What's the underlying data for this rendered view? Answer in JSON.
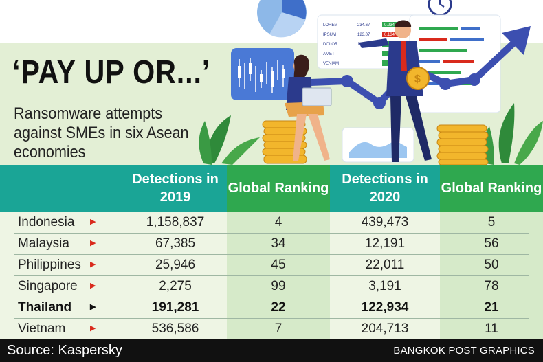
{
  "header": {
    "title": "‘PAY UP OR...’",
    "subtitle": "Ransomware attempts against SMEs in six Asean economies"
  },
  "illustration": {
    "ticker": [
      {
        "name": "LOREM",
        "value": "234.67",
        "change": "0.234",
        "color": "#2fa84f"
      },
      {
        "name": "IPSUM",
        "value": "123.07",
        "change": "0.134",
        "color": "#d92a1c"
      },
      {
        "name": "DOLOR",
        "value": "145.0",
        "change": "",
        "color": "#2fa84f"
      },
      {
        "name": "AMET",
        "value": "",
        "change": "",
        "color": "#2fa84f"
      },
      {
        "name": "VENIAM",
        "value": "",
        "change": "",
        "color": "#2fa84f"
      }
    ]
  },
  "table": {
    "headers": [
      "Detections in 2019",
      "Global Ranking",
      "Detections in 2020",
      "Global Ranking"
    ],
    "rows": [
      {
        "country": "Indonesia",
        "d2019": "1,158,837",
        "r2019": "4",
        "d2020": "439,473",
        "r2020": "5",
        "bold": false
      },
      {
        "country": "Malaysia",
        "d2019": "67,385",
        "r2019": "34",
        "d2020": "12,191",
        "r2020": "56",
        "bold": false
      },
      {
        "country": "Philippines",
        "d2019": "25,946",
        "r2019": "45",
        "d2020": "22,011",
        "r2020": "50",
        "bold": false
      },
      {
        "country": "Singapore",
        "d2019": "2,275",
        "r2019": "99",
        "d2020": "3,191",
        "r2020": "78",
        "bold": false
      },
      {
        "country": "Thailand",
        "d2019": "191,281",
        "r2019": "22",
        "d2020": "122,934",
        "r2020": "21",
        "bold": true
      },
      {
        "country": "Vietnam",
        "d2019": "536,586",
        "r2019": "7",
        "d2020": "204,713",
        "r2020": "11",
        "bold": false
      }
    ]
  },
  "footer": {
    "source": "Source: Kaspersky",
    "credit": "BANGKOK POST GRAPHICS"
  },
  "colors": {
    "header_teal": "#1aa596",
    "header_green": "#2fa84f",
    "col_light": "#eef5e4",
    "col_mid": "#d6eac9",
    "arrow_red": "#d92a1c"
  }
}
